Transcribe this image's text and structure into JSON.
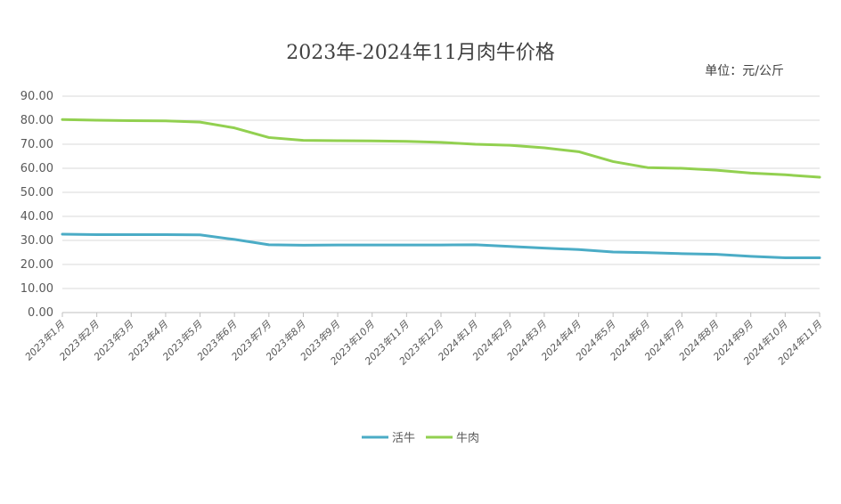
{
  "chart_data": {
    "type": "line",
    "title": "2023年-2024年11月肉牛价格",
    "unit_label": "单位：元/公斤",
    "ylim": [
      0,
      90
    ],
    "yticks": [
      "0.00",
      "10.00",
      "20.00",
      "30.00",
      "40.00",
      "50.00",
      "60.00",
      "70.00",
      "80.00",
      "90.00"
    ],
    "grid": true,
    "legend_position": "bottom",
    "categories": [
      "2023年1月",
      "2023年2月",
      "2023年3月",
      "2023年4月",
      "2023年5月",
      "2023年6月",
      "2023年7月",
      "2023年8月",
      "2023年9月",
      "2023年10月",
      "2023年11月",
      "2023年12月",
      "2024年1月",
      "2024年2月",
      "2024年3月",
      "2024年4月",
      "2024年5月",
      "2024年6月",
      "2024年7月",
      "2024年8月",
      "2024年9月",
      "2024年10月",
      "2024年11月"
    ],
    "series": [
      {
        "name": "活牛",
        "color": "#4bacc6",
        "values": [
          32.6,
          32.4,
          32.4,
          32.4,
          32.3,
          30.4,
          28.2,
          28.0,
          28.1,
          28.1,
          28.1,
          28.1,
          28.2,
          27.5,
          26.8,
          26.2,
          25.2,
          24.9,
          24.5,
          24.2,
          23.4,
          22.8,
          22.8
        ]
      },
      {
        "name": "牛肉",
        "color": "#92d050",
        "values": [
          80.3,
          80.0,
          79.8,
          79.7,
          79.2,
          76.8,
          72.8,
          71.6,
          71.5,
          71.4,
          71.2,
          70.8,
          70.0,
          69.6,
          68.5,
          66.9,
          62.8,
          60.3,
          60.0,
          59.2,
          58.0,
          57.3,
          56.3
        ]
      }
    ]
  }
}
